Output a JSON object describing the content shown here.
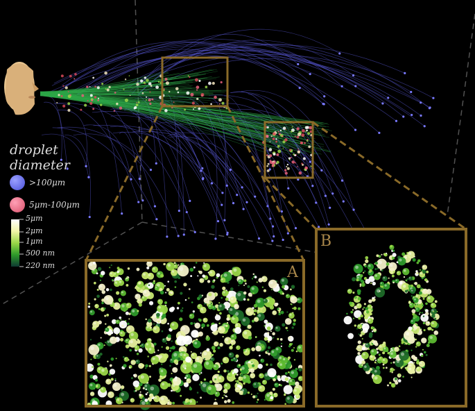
{
  "legend": {
    "title_line1": "droplet",
    "title_line2": "diameter",
    "large": {
      "label": ">100μm",
      "color": "#5a5ff0"
    },
    "medium": {
      "label": "5μm-100μm",
      "color": "#e8607a"
    },
    "colorbar": {
      "ticks": [
        "5μm",
        "2μm",
        "1μm",
        "500 nm",
        "220 nm"
      ],
      "colors": [
        "#ffffff",
        "#f2f5a8",
        "#9ad648",
        "#2e9a2a",
        "#0e3a32"
      ]
    }
  },
  "panels": {
    "a": {
      "label": "A"
    },
    "b": {
      "label": "B"
    }
  },
  "colors": {
    "frame": "#8a6a28",
    "trajectory": "#6a6ae0",
    "plume": "#2fa84a",
    "background": "#000000"
  },
  "icons": {
    "head": "mannequin-head-icon"
  }
}
